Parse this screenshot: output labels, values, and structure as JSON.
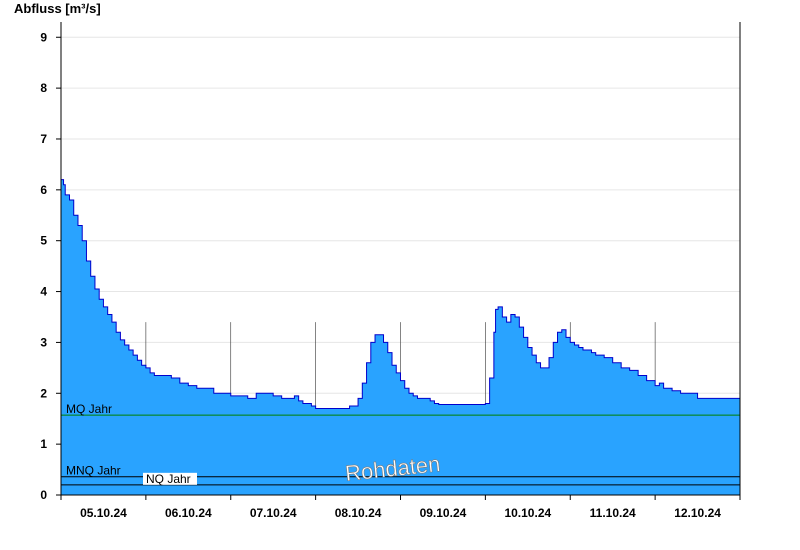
{
  "chart_data": {
    "type": "area",
    "ylabel": "Abfluss [m³/s]",
    "ylim": [
      0,
      9.3
    ],
    "yticks": [
      0,
      1,
      2,
      3,
      4,
      5,
      6,
      7,
      8,
      9
    ],
    "xlim": [
      0,
      8
    ],
    "x_unit": "days since 05.10.24 00:00",
    "day_labels": [
      "05.10.24",
      "06.10.24",
      "07.10.24",
      "08.10.24",
      "09.10.24",
      "10.10.24",
      "11.10.24",
      "12.10.24"
    ],
    "grid": true,
    "watermark": "Rohdaten",
    "colors": {
      "area_fill": "#29a3ff",
      "area_line": "#0000cc",
      "mq_line": "#008000",
      "nq_lines": "#000000",
      "grid": "#e6e6e6"
    },
    "reference_lines": [
      {
        "label": "MQ Jahr",
        "value": 1.57
      },
      {
        "label": "MNQ Jahr",
        "value": 0.36
      },
      {
        "label": "NQ Jahr",
        "value": 0.2
      }
    ],
    "series": [
      {
        "x": [
          0.0,
          0.03,
          0.05,
          0.08,
          0.1,
          0.15,
          0.2,
          0.25,
          0.3,
          0.35,
          0.4,
          0.45,
          0.5,
          0.55,
          0.6,
          0.65,
          0.7,
          0.75,
          0.8,
          0.85,
          0.9,
          0.95,
          1.0,
          1.05,
          1.1,
          1.2,
          1.3,
          1.4,
          1.5,
          1.6,
          1.8,
          2.0,
          2.2,
          2.3,
          2.5,
          2.6,
          2.75,
          2.8,
          2.85,
          2.95,
          3.0,
          3.05,
          3.2,
          3.4,
          3.5,
          3.55,
          3.6,
          3.65,
          3.7,
          3.75,
          3.8,
          3.85,
          3.9,
          3.95,
          4.0,
          4.05,
          4.1,
          4.15,
          4.2,
          4.25,
          4.3,
          4.35,
          4.4,
          4.45,
          4.5,
          4.6,
          4.7,
          4.8,
          4.9,
          5.0,
          5.05,
          5.1,
          5.12,
          5.15,
          5.2,
          5.25,
          5.3,
          5.35,
          5.4,
          5.45,
          5.5,
          5.55,
          5.6,
          5.65,
          5.7,
          5.75,
          5.8,
          5.85,
          5.9,
          5.95,
          6.0,
          6.05,
          6.1,
          6.15,
          6.2,
          6.25,
          6.3,
          6.4,
          6.5,
          6.6,
          6.7,
          6.8,
          6.9,
          7.0,
          7.05,
          7.1,
          7.2,
          7.3,
          7.45,
          7.5,
          7.7,
          8.0
        ],
        "values": [
          6.2,
          6.1,
          5.9,
          5.9,
          5.8,
          5.5,
          5.3,
          5.0,
          4.6,
          4.3,
          4.05,
          3.85,
          3.7,
          3.55,
          3.4,
          3.2,
          3.05,
          2.95,
          2.85,
          2.75,
          2.65,
          2.55,
          2.5,
          2.4,
          2.35,
          2.35,
          2.3,
          2.2,
          2.15,
          2.1,
          2.0,
          1.95,
          1.9,
          2.0,
          1.95,
          1.9,
          1.95,
          1.85,
          1.8,
          1.75,
          1.7,
          1.7,
          1.7,
          1.75,
          1.9,
          2.2,
          2.6,
          3.0,
          3.15,
          3.15,
          3.0,
          2.8,
          2.55,
          2.4,
          2.25,
          2.1,
          2.0,
          1.95,
          1.9,
          1.9,
          1.9,
          1.85,
          1.8,
          1.78,
          1.78,
          1.78,
          1.78,
          1.78,
          1.78,
          1.8,
          2.3,
          3.2,
          3.65,
          3.7,
          3.5,
          3.4,
          3.55,
          3.5,
          3.3,
          3.1,
          2.9,
          2.75,
          2.6,
          2.5,
          2.5,
          2.7,
          3.0,
          3.2,
          3.25,
          3.1,
          3.0,
          2.95,
          2.9,
          2.85,
          2.85,
          2.8,
          2.75,
          2.7,
          2.6,
          2.5,
          2.45,
          2.35,
          2.25,
          2.15,
          2.2,
          2.1,
          2.05,
          2.0,
          2.0,
          1.9,
          1.9,
          1.9
        ]
      }
    ]
  }
}
